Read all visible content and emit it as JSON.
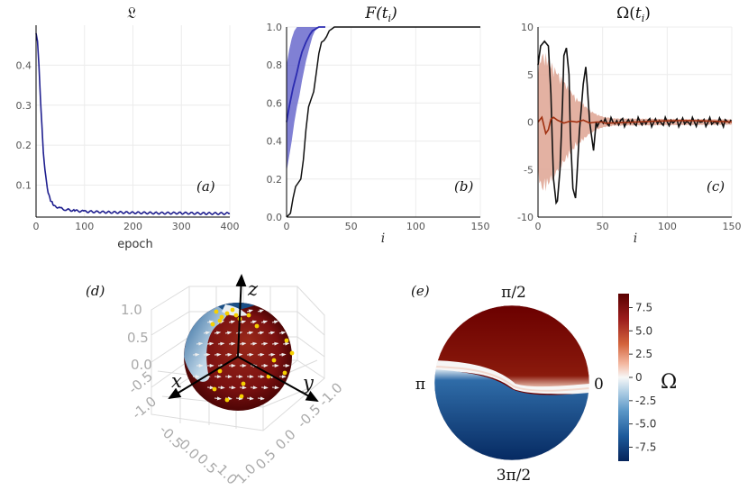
{
  "chart_data": [
    {
      "panel": "(a)",
      "type": "line",
      "title": "𝔏",
      "xlabel": "epoch",
      "ylabel": "",
      "xlim": [
        0,
        400
      ],
      "ylim": [
        0.02,
        0.5
      ],
      "xticks": [
        "0",
        "100",
        "200",
        "300",
        "400"
      ],
      "yticks": [
        "0.1",
        "0.2",
        "0.3",
        "0.4"
      ],
      "series": [
        {
          "name": "loss",
          "color": "#1f1f8f",
          "x": [
            0,
            3,
            6,
            9,
            12,
            15,
            20,
            25,
            30,
            35,
            40,
            50,
            60,
            80,
            100,
            150,
            200,
            250,
            300,
            350,
            400
          ],
          "y": [
            0.48,
            0.46,
            0.4,
            0.32,
            0.25,
            0.18,
            0.12,
            0.08,
            0.062,
            0.053,
            0.047,
            0.042,
            0.039,
            0.036,
            0.034,
            0.032,
            0.031,
            0.03,
            0.03,
            0.029,
            0.029
          ]
        }
      ]
    },
    {
      "panel": "(b)",
      "type": "line",
      "title": "F(t_i)",
      "xlabel": "i",
      "ylabel": "",
      "xlim": [
        0,
        150
      ],
      "ylim": [
        0,
        1
      ],
      "xticks": [
        "0",
        "50",
        "100",
        "150"
      ],
      "yticks": [
        "0.0",
        "0.2",
        "0.4",
        "0.6",
        "0.8",
        "1.0"
      ],
      "series": [
        {
          "name": "trained mean",
          "color": "#2b2bb0",
          "x": [
            0,
            2,
            5,
            8,
            10,
            12,
            15,
            18,
            20,
            25,
            30
          ],
          "y": [
            0.5,
            0.58,
            0.68,
            0.76,
            0.82,
            0.87,
            0.92,
            0.96,
            0.98,
            1.0,
            1.0
          ]
        },
        {
          "name": "trained band upper",
          "color": "#7070d0",
          "x": [
            0,
            2,
            4,
            6,
            8,
            10,
            12,
            15,
            30,
            150
          ],
          "y": [
            0.8,
            0.88,
            0.94,
            0.98,
            1.0,
            1.0,
            1.0,
            1.0,
            1.0,
            1.0
          ]
        },
        {
          "name": "trained band lower",
          "color": "#7070d0",
          "x": [
            0,
            2,
            4,
            6,
            8,
            10,
            12,
            15,
            18,
            20,
            22,
            25,
            30
          ],
          "y": [
            0.24,
            0.32,
            0.4,
            0.5,
            0.58,
            0.64,
            0.72,
            0.82,
            0.9,
            0.95,
            0.98,
            1.0,
            1.0
          ]
        },
        {
          "name": "baseline",
          "color": "#111111",
          "x": [
            0,
            3,
            5,
            7,
            9,
            11,
            13,
            15,
            17,
            19,
            21,
            23,
            25,
            27,
            29,
            31,
            33,
            35,
            37,
            40,
            45,
            150
          ],
          "y": [
            0,
            0.02,
            0.1,
            0.16,
            0.18,
            0.2,
            0.3,
            0.46,
            0.58,
            0.62,
            0.66,
            0.76,
            0.86,
            0.92,
            0.93,
            0.95,
            0.98,
            0.99,
            1.0,
            1.0,
            1.0,
            1.0
          ]
        }
      ]
    },
    {
      "panel": "(c)",
      "type": "line",
      "title": "Ω(t_i)",
      "xlabel": "i",
      "ylabel": "",
      "xlim": [
        0,
        150
      ],
      "ylim": [
        -10,
        10
      ],
      "xticks": [
        "0",
        "50",
        "100",
        "150"
      ],
      "yticks": [
        "-10",
        "-5",
        "0",
        "5",
        "10"
      ],
      "series": [
        {
          "name": "baseline",
          "color": "#111111",
          "x": [
            0,
            2,
            5,
            8,
            10,
            11,
            12,
            14,
            15,
            17,
            19,
            20,
            22,
            24,
            25,
            27,
            29,
            30,
            32,
            35,
            37,
            38,
            40,
            43,
            45
          ],
          "y": [
            6,
            8,
            8.5,
            8,
            3,
            -2,
            -6,
            -8.5,
            -8.3,
            -5,
            2,
            7,
            7.8,
            5,
            -1,
            -7,
            -8,
            -6,
            -1,
            4,
            5.8,
            4,
            0,
            -3,
            0
          ]
        },
        {
          "name": "trained mean",
          "color": "#a03010",
          "x": [
            0,
            3,
            6,
            8,
            10,
            12,
            15,
            20,
            25,
            30,
            35,
            40,
            45,
            50
          ],
          "y": [
            0,
            0.5,
            -1.2,
            -0.8,
            0.3,
            0.5,
            0.2,
            -0.1,
            0.1,
            0,
            0.2,
            -0.1,
            0,
            0
          ]
        },
        {
          "name": "band amplitude",
          "color": "#e0a898",
          "x": [
            0,
            3,
            6,
            10,
            15,
            20,
            25,
            30,
            35,
            40,
            45,
            50,
            60,
            150
          ],
          "y": [
            6,
            7.5,
            7.3,
            6.5,
            5.5,
            4.5,
            3.5,
            2.6,
            2,
            1.3,
            0.9,
            0.6,
            0.4,
            0.3
          ]
        }
      ]
    },
    {
      "panel": "(d)",
      "type": "sphere",
      "axis_labels": [
        "x",
        "y",
        "z"
      ],
      "tick_labels_front": [
        "1.0",
        "0.5",
        "0.0",
        "-0.5",
        "-1.0"
      ],
      "tick_labels_left": [
        "1.0",
        "0.5",
        "0.0",
        "-0.5",
        "-1.0"
      ],
      "tick_labels_right": [
        "-1.0",
        "-0.5",
        "0.0",
        "0.5",
        "1.0"
      ],
      "point_color": "#f5d000"
    },
    {
      "panel": "(e)",
      "type": "heatmap",
      "angle_labels": {
        "top": "π/2",
        "left": "π",
        "right": "0",
        "bottom": "3π/2"
      },
      "colorbar_label": "Ω",
      "colorbar_ticks": [
        "7.5",
        "5.0",
        "2.5",
        "0",
        "-2.5",
        "-5.0",
        "-7.5"
      ],
      "colorbar_range": [
        -9,
        9
      ],
      "colors": {
        "high": "#6b0000",
        "mid": "#f7f7f7",
        "low": "#08306b"
      }
    }
  ]
}
